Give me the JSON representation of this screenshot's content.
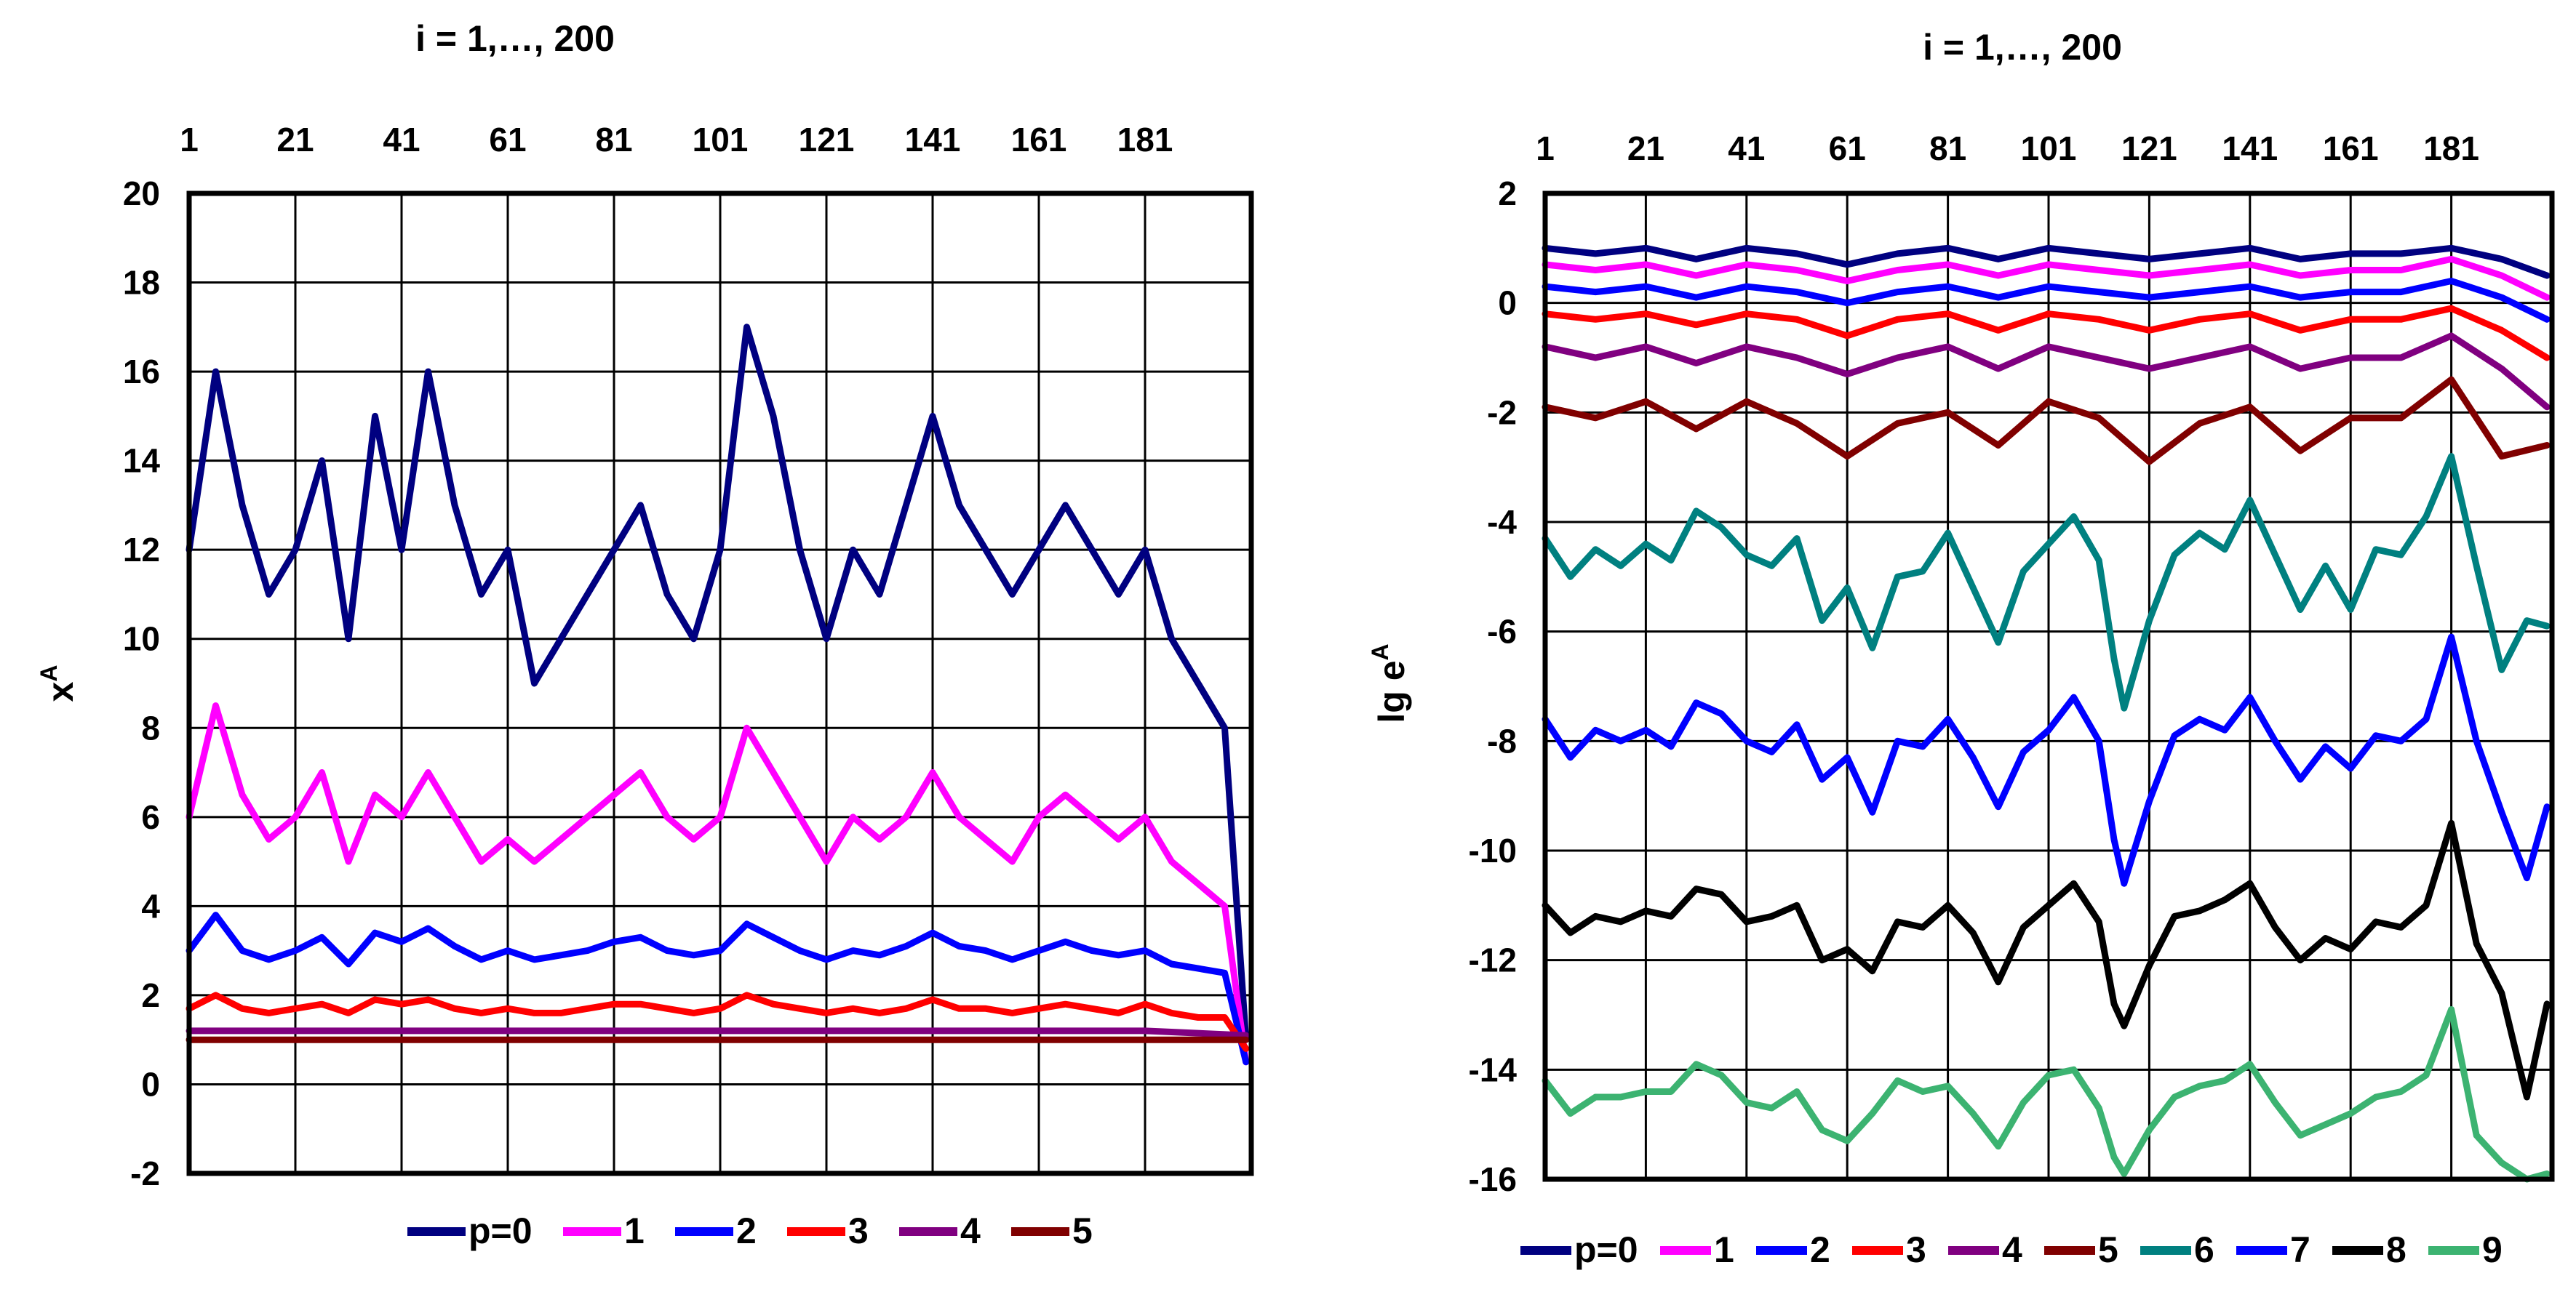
{
  "chart_data": [
    {
      "type": "line",
      "title": "i = 1,…, 200",
      "xlabel": "",
      "ylabel": "x",
      "ylabel_sup": "A",
      "xlim": [
        1,
        201
      ],
      "ylim": [
        -2,
        20
      ],
      "x_ticks": [
        "1",
        "21",
        "41",
        "61",
        "81",
        "101",
        "121",
        "141",
        "161",
        "181"
      ],
      "y_ticks": [
        "20",
        "18",
        "16",
        "14",
        "12",
        "10",
        "8",
        "6",
        "4",
        "2",
        "0",
        "-2"
      ],
      "grid": true,
      "legend_position": "bottom",
      "legend_labels": [
        "p=0",
        "1",
        "2",
        "3",
        "4",
        "5"
      ],
      "series": [
        {
          "name": "p=0",
          "color": "#000080",
          "x": [
            1,
            6,
            11,
            16,
            21,
            26,
            31,
            36,
            41,
            46,
            51,
            56,
            61,
            66,
            71,
            76,
            81,
            86,
            91,
            96,
            101,
            106,
            111,
            116,
            121,
            126,
            131,
            136,
            141,
            146,
            151,
            156,
            161,
            166,
            171,
            176,
            181,
            186,
            191,
            196,
            200
          ],
          "values": [
            12,
            16,
            13,
            11,
            12,
            14,
            10,
            15,
            12,
            16,
            13,
            11,
            12,
            9,
            10,
            11,
            12,
            13,
            11,
            10,
            12,
            17,
            15,
            12,
            10,
            12,
            11,
            13,
            15,
            13,
            12,
            11,
            12,
            13,
            12,
            11,
            12,
            10,
            9,
            8,
            1
          ]
        },
        {
          "name": "1",
          "color": "#FF00FF",
          "x": [
            1,
            6,
            11,
            16,
            21,
            26,
            31,
            36,
            41,
            46,
            51,
            56,
            61,
            66,
            71,
            76,
            81,
            86,
            91,
            96,
            101,
            106,
            111,
            116,
            121,
            126,
            131,
            136,
            141,
            146,
            151,
            156,
            161,
            166,
            171,
            176,
            181,
            186,
            191,
            196,
            200
          ],
          "values": [
            6,
            8.5,
            6.5,
            5.5,
            6,
            7,
            5,
            6.5,
            6,
            7,
            6,
            5,
            5.5,
            5,
            5.5,
            6,
            6.5,
            7,
            6,
            5.5,
            6,
            8,
            7,
            6,
            5,
            6,
            5.5,
            6,
            7,
            6,
            5.5,
            5,
            6,
            6.5,
            6,
            5.5,
            6,
            5,
            4.5,
            4,
            0.5
          ]
        },
        {
          "name": "2",
          "color": "#0000FF",
          "x": [
            1,
            6,
            11,
            16,
            21,
            26,
            31,
            36,
            41,
            46,
            51,
            56,
            61,
            66,
            71,
            76,
            81,
            86,
            91,
            96,
            101,
            106,
            111,
            116,
            121,
            126,
            131,
            136,
            141,
            146,
            151,
            156,
            161,
            166,
            171,
            176,
            181,
            186,
            191,
            196,
            200
          ],
          "values": [
            3,
            3.8,
            3,
            2.8,
            3,
            3.3,
            2.7,
            3.4,
            3.2,
            3.5,
            3.1,
            2.8,
            3,
            2.8,
            2.9,
            3,
            3.2,
            3.3,
            3,
            2.9,
            3,
            3.6,
            3.3,
            3,
            2.8,
            3,
            2.9,
            3.1,
            3.4,
            3.1,
            3,
            2.8,
            3,
            3.2,
            3,
            2.9,
            3,
            2.7,
            2.6,
            2.5,
            0.5
          ]
        },
        {
          "name": "3",
          "color": "#FF0000",
          "x": [
            1,
            6,
            11,
            16,
            21,
            26,
            31,
            36,
            41,
            46,
            51,
            56,
            61,
            66,
            71,
            76,
            81,
            86,
            91,
            96,
            101,
            106,
            111,
            116,
            121,
            126,
            131,
            136,
            141,
            146,
            151,
            156,
            161,
            166,
            171,
            176,
            181,
            186,
            191,
            196,
            200
          ],
          "values": [
            1.7,
            2,
            1.7,
            1.6,
            1.7,
            1.8,
            1.6,
            1.9,
            1.8,
            1.9,
            1.7,
            1.6,
            1.7,
            1.6,
            1.6,
            1.7,
            1.8,
            1.8,
            1.7,
            1.6,
            1.7,
            2,
            1.8,
            1.7,
            1.6,
            1.7,
            1.6,
            1.7,
            1.9,
            1.7,
            1.7,
            1.6,
            1.7,
            1.8,
            1.7,
            1.6,
            1.8,
            1.6,
            1.5,
            1.5,
            0.8
          ]
        },
        {
          "name": "4",
          "color": "#800080",
          "x": [
            1,
            21,
            41,
            61,
            81,
            101,
            121,
            141,
            161,
            181,
            200
          ],
          "values": [
            1.2,
            1.2,
            1.2,
            1.2,
            1.2,
            1.2,
            1.2,
            1.2,
            1.2,
            1.2,
            1.1
          ]
        },
        {
          "name": "5",
          "color": "#800000",
          "x": [
            1,
            21,
            41,
            61,
            81,
            101,
            121,
            141,
            161,
            181,
            200
          ],
          "values": [
            1,
            1,
            1,
            1,
            1,
            1,
            1,
            1,
            1,
            1,
            1
          ]
        }
      ]
    },
    {
      "type": "line",
      "title": "i = 1,…, 200",
      "xlabel": "",
      "ylabel": "lg e",
      "ylabel_sup": "A",
      "xlim": [
        1,
        201
      ],
      "ylim": [
        -16,
        2
      ],
      "x_ticks": [
        "1",
        "21",
        "41",
        "61",
        "81",
        "101",
        "121",
        "141",
        "161",
        "181"
      ],
      "y_ticks": [
        "2",
        "0",
        "-2",
        "-4",
        "-6",
        "-8",
        "-10",
        "-12",
        "-14",
        "-16"
      ],
      "grid": true,
      "legend_position": "bottom",
      "legend_labels": [
        "p=0",
        "1",
        "2",
        "3",
        "4",
        "5",
        "6",
        "7",
        "8",
        "9"
      ],
      "series": [
        {
          "name": "p=0",
          "color": "#000080",
          "x": [
            1,
            11,
            21,
            31,
            41,
            51,
            61,
            71,
            81,
            91,
            101,
            111,
            121,
            131,
            141,
            151,
            161,
            171,
            181,
            191,
            200
          ],
          "values": [
            1,
            0.9,
            1,
            0.8,
            1,
            0.9,
            0.7,
            0.9,
            1,
            0.8,
            1,
            0.9,
            0.8,
            0.9,
            1,
            0.8,
            0.9,
            0.9,
            1,
            0.8,
            0.5
          ]
        },
        {
          "name": "1",
          "color": "#FF00FF",
          "x": [
            1,
            11,
            21,
            31,
            41,
            51,
            61,
            71,
            81,
            91,
            101,
            111,
            121,
            131,
            141,
            151,
            161,
            171,
            181,
            191,
            200
          ],
          "values": [
            0.7,
            0.6,
            0.7,
            0.5,
            0.7,
            0.6,
            0.4,
            0.6,
            0.7,
            0.5,
            0.7,
            0.6,
            0.5,
            0.6,
            0.7,
            0.5,
            0.6,
            0.6,
            0.8,
            0.5,
            0.1
          ]
        },
        {
          "name": "2",
          "color": "#0000FF",
          "x": [
            1,
            11,
            21,
            31,
            41,
            51,
            61,
            71,
            81,
            91,
            101,
            111,
            121,
            131,
            141,
            151,
            161,
            171,
            181,
            191,
            200
          ],
          "values": [
            0.3,
            0.2,
            0.3,
            0.1,
            0.3,
            0.2,
            0,
            0.2,
            0.3,
            0.1,
            0.3,
            0.2,
            0.1,
            0.2,
            0.3,
            0.1,
            0.2,
            0.2,
            0.4,
            0.1,
            -0.3
          ]
        },
        {
          "name": "3",
          "color": "#FF0000",
          "x": [
            1,
            11,
            21,
            31,
            41,
            51,
            61,
            71,
            81,
            91,
            101,
            111,
            121,
            131,
            141,
            151,
            161,
            171,
            181,
            191,
            200
          ],
          "values": [
            -0.2,
            -0.3,
            -0.2,
            -0.4,
            -0.2,
            -0.3,
            -0.6,
            -0.3,
            -0.2,
            -0.5,
            -0.2,
            -0.3,
            -0.5,
            -0.3,
            -0.2,
            -0.5,
            -0.3,
            -0.3,
            -0.1,
            -0.5,
            -1
          ]
        },
        {
          "name": "4",
          "color": "#800080",
          "x": [
            1,
            11,
            21,
            31,
            41,
            51,
            61,
            71,
            81,
            91,
            101,
            111,
            121,
            131,
            141,
            151,
            161,
            171,
            181,
            191,
            200
          ],
          "values": [
            -0.8,
            -1,
            -0.8,
            -1.1,
            -0.8,
            -1,
            -1.3,
            -1,
            -0.8,
            -1.2,
            -0.8,
            -1,
            -1.2,
            -1,
            -0.8,
            -1.2,
            -1,
            -1,
            -0.6,
            -1.2,
            -1.9
          ]
        },
        {
          "name": "5",
          "color": "#800000",
          "x": [
            1,
            11,
            21,
            31,
            41,
            51,
            61,
            71,
            81,
            91,
            101,
            111,
            121,
            131,
            141,
            151,
            161,
            171,
            181,
            191,
            200
          ],
          "values": [
            -1.9,
            -2.1,
            -1.8,
            -2.3,
            -1.8,
            -2.2,
            -2.8,
            -2.2,
            -2,
            -2.6,
            -1.8,
            -2.1,
            -2.9,
            -2.2,
            -1.9,
            -2.7,
            -2.1,
            -2.1,
            -1.4,
            -2.8,
            -2.6
          ]
        },
        {
          "name": "6",
          "color": "#008080",
          "x": [
            1,
            6,
            11,
            16,
            21,
            26,
            31,
            36,
            41,
            46,
            51,
            56,
            61,
            66,
            71,
            76,
            81,
            86,
            91,
            96,
            101,
            106,
            111,
            114,
            116,
            121,
            126,
            131,
            136,
            141,
            146,
            151,
            156,
            161,
            166,
            171,
            176,
            181,
            186,
            191,
            196,
            200
          ],
          "values": [
            -4.3,
            -5,
            -4.5,
            -4.8,
            -4.4,
            -4.7,
            -3.8,
            -4.1,
            -4.6,
            -4.8,
            -4.3,
            -5.8,
            -5.2,
            -6.3,
            -5,
            -4.9,
            -4.2,
            -5.2,
            -6.2,
            -4.9,
            -4.4,
            -3.9,
            -4.7,
            -6.5,
            -7.4,
            -5.8,
            -4.6,
            -4.2,
            -4.5,
            -3.6,
            -4.6,
            -5.6,
            -4.8,
            -5.6,
            -4.5,
            -4.6,
            -3.9,
            -2.8,
            -4.8,
            -6.7,
            -5.8,
            -5.9
          ]
        },
        {
          "name": "7",
          "color": "#0000FF",
          "x": [
            1,
            6,
            11,
            16,
            21,
            26,
            31,
            36,
            41,
            46,
            51,
            56,
            61,
            66,
            71,
            76,
            81,
            86,
            91,
            96,
            101,
            106,
            111,
            114,
            116,
            121,
            126,
            131,
            136,
            141,
            146,
            151,
            156,
            161,
            166,
            171,
            176,
            181,
            186,
            191,
            196,
            200
          ],
          "values": [
            -7.6,
            -8.3,
            -7.8,
            -8,
            -7.8,
            -8.1,
            -7.3,
            -7.5,
            -8,
            -8.2,
            -7.7,
            -8.7,
            -8.3,
            -9.3,
            -8,
            -8.1,
            -7.6,
            -8.3,
            -9.2,
            -8.2,
            -7.8,
            -7.2,
            -8,
            -9.8,
            -10.6,
            -9.1,
            -7.9,
            -7.6,
            -7.8,
            -7.2,
            -8,
            -8.7,
            -8.1,
            -8.5,
            -7.9,
            -8,
            -7.6,
            -6.1,
            -8,
            -9.3,
            -10.5,
            -9.2
          ]
        },
        {
          "name": "8",
          "color": "#000000",
          "x": [
            1,
            6,
            11,
            16,
            21,
            26,
            31,
            36,
            41,
            46,
            51,
            56,
            61,
            66,
            71,
            76,
            81,
            86,
            91,
            96,
            101,
            106,
            111,
            114,
            116,
            121,
            126,
            131,
            136,
            141,
            146,
            151,
            156,
            161,
            166,
            171,
            176,
            181,
            186,
            191,
            196,
            200
          ],
          "values": [
            -11,
            -11.5,
            -11.2,
            -11.3,
            -11.1,
            -11.2,
            -10.7,
            -10.8,
            -11.3,
            -11.2,
            -11,
            -12,
            -11.8,
            -12.2,
            -11.3,
            -11.4,
            -11,
            -11.5,
            -12.4,
            -11.4,
            -11,
            -10.6,
            -11.3,
            -12.8,
            -13.2,
            -12.1,
            -11.2,
            -11.1,
            -10.9,
            -10.6,
            -11.4,
            -12,
            -11.6,
            -11.8,
            -11.3,
            -11.4,
            -11,
            -9.5,
            -11.7,
            -12.6,
            -14.5,
            -12.8
          ]
        },
        {
          "name": "9",
          "color": "#3CB371",
          "x": [
            1,
            6,
            11,
            16,
            21,
            26,
            31,
            36,
            41,
            46,
            51,
            56,
            61,
            66,
            71,
            76,
            81,
            86,
            91,
            96,
            101,
            106,
            111,
            114,
            116,
            121,
            126,
            131,
            136,
            141,
            146,
            151,
            156,
            161,
            166,
            171,
            176,
            181,
            186,
            191,
            196,
            200
          ],
          "values": [
            -14.2,
            -14.8,
            -14.5,
            -14.5,
            -14.4,
            -14.4,
            -13.9,
            -14.1,
            -14.6,
            -14.7,
            -14.4,
            -15.1,
            -15.3,
            -14.8,
            -14.2,
            -14.4,
            -14.3,
            -14.8,
            -15.4,
            -14.6,
            -14.1,
            -14,
            -14.7,
            -15.6,
            -15.9,
            -15.1,
            -14.5,
            -14.3,
            -14.2,
            -13.9,
            -14.6,
            -15.2,
            -15,
            -14.8,
            -14.5,
            -14.4,
            -14.1,
            -12.9,
            -15.2,
            -15.7,
            -16,
            -15.9
          ]
        }
      ]
    }
  ]
}
